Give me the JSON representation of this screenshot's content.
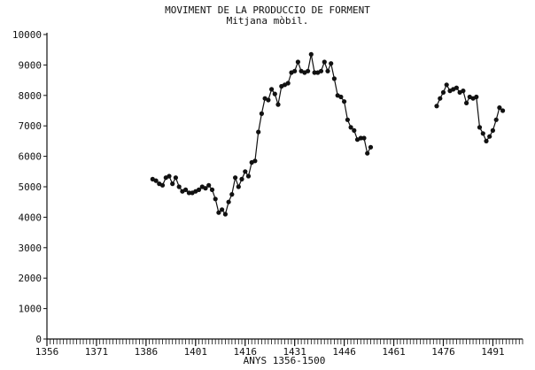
{
  "chart_data": {
    "type": "line",
    "title": "MOVIMENT DE LA PRODUCCIO DE FORMENT",
    "subtitle": "Mitjana mòbil.",
    "xlabel": "ANYS 1356-1500",
    "ylabel": "",
    "xlim": [
      1356,
      1500
    ],
    "ylim": [
      0,
      10000
    ],
    "x_ticks": [
      "1356",
      "1371",
      "1386",
      "1401",
      "1416",
      "1431",
      "1446",
      "1461",
      "1476",
      "1491"
    ],
    "y_ticks": [
      "0",
      "1000",
      "2000",
      "3000",
      "4000",
      "5000",
      "6000",
      "7000",
      "8000",
      "9000",
      "10000"
    ],
    "grid": false,
    "legend": "none",
    "colors": {
      "line": "#111111",
      "marker": "#111111",
      "axis": "#111111"
    },
    "series": [
      {
        "segments": [
          [
            [
              1388,
              5250
            ],
            [
              1389,
              5200
            ],
            [
              1390,
              5100
            ],
            [
              1391,
              5050
            ],
            [
              1392,
              5300
            ],
            [
              1393,
              5350
            ],
            [
              1394,
              5100
            ],
            [
              1395,
              5300
            ],
            [
              1396,
              5000
            ],
            [
              1397,
              4850
            ],
            [
              1398,
              4900
            ],
            [
              1399,
              4800
            ],
            [
              1400,
              4800
            ],
            [
              1401,
              4850
            ],
            [
              1402,
              4900
            ],
            [
              1403,
              5000
            ],
            [
              1404,
              4950
            ],
            [
              1405,
              5050
            ],
            [
              1406,
              4900
            ],
            [
              1407,
              4600
            ],
            [
              1408,
              4150
            ],
            [
              1409,
              4250
            ],
            [
              1410,
              4100
            ],
            [
              1411,
              4500
            ],
            [
              1412,
              4750
            ],
            [
              1413,
              5300
            ],
            [
              1414,
              5000
            ],
            [
              1415,
              5250
            ],
            [
              1416,
              5500
            ],
            [
              1417,
              5350
            ],
            [
              1418,
              5800
            ],
            [
              1419,
              5850
            ],
            [
              1420,
              6800
            ],
            [
              1421,
              7400
            ],
            [
              1422,
              7900
            ],
            [
              1423,
              7850
            ],
            [
              1424,
              8200
            ],
            [
              1425,
              8050
            ],
            [
              1426,
              7700
            ],
            [
              1427,
              8300
            ],
            [
              1428,
              8350
            ],
            [
              1429,
              8400
            ],
            [
              1430,
              8750
            ],
            [
              1431,
              8800
            ],
            [
              1432,
              9100
            ],
            [
              1433,
              8800
            ],
            [
              1434,
              8750
            ],
            [
              1435,
              8800
            ],
            [
              1436,
              9350
            ],
            [
              1437,
              8750
            ],
            [
              1438,
              8750
            ],
            [
              1439,
              8800
            ],
            [
              1440,
              9100
            ],
            [
              1441,
              8800
            ],
            [
              1442,
              9050
            ],
            [
              1443,
              8550
            ],
            [
              1444,
              8000
            ],
            [
              1445,
              7950
            ],
            [
              1446,
              7800
            ],
            [
              1447,
              7200
            ],
            [
              1448,
              6950
            ],
            [
              1449,
              6850
            ],
            [
              1450,
              6550
            ],
            [
              1451,
              6600
            ],
            [
              1452,
              6600
            ],
            [
              1453,
              6100
            ],
            [
              1454,
              6300
            ]
          ],
          [
            [
              1474,
              7650
            ],
            [
              1475,
              7900
            ],
            [
              1476,
              8100
            ],
            [
              1477,
              8350
            ],
            [
              1478,
              8150
            ],
            [
              1479,
              8200
            ],
            [
              1480,
              8250
            ],
            [
              1481,
              8100
            ],
            [
              1482,
              8150
            ],
            [
              1483,
              7750
            ],
            [
              1484,
              7950
            ],
            [
              1485,
              7900
            ],
            [
              1486,
              7950
            ],
            [
              1487,
              6950
            ],
            [
              1488,
              6750
            ],
            [
              1489,
              6500
            ],
            [
              1490,
              6650
            ],
            [
              1491,
              6850
            ],
            [
              1492,
              7200
            ],
            [
              1493,
              7600
            ],
            [
              1494,
              7500
            ]
          ]
        ]
      }
    ]
  }
}
